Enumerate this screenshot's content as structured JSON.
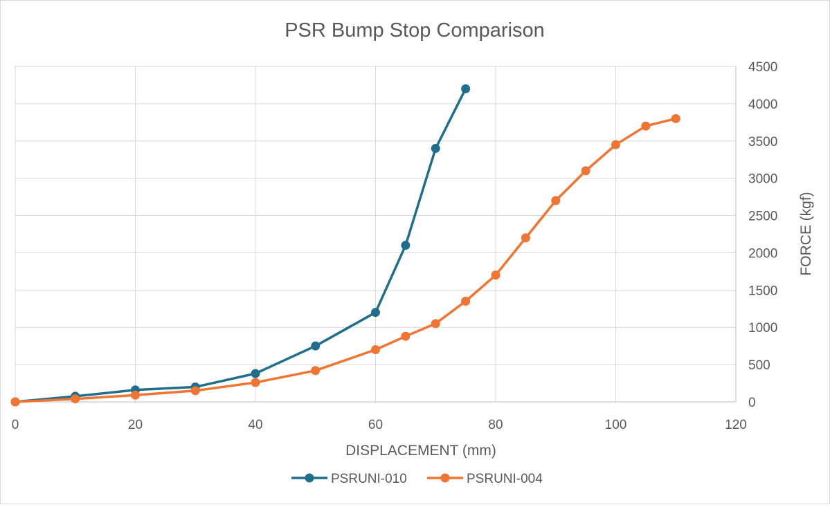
{
  "chart_data": {
    "type": "line",
    "title": "PSR Bump Stop Comparison",
    "xlabel": "DISPLACEMENT (mm)",
    "ylabel": "FORCE (kgf)",
    "xlim": [
      0,
      120
    ],
    "ylim": [
      0,
      4500
    ],
    "xticks": [
      0,
      20,
      40,
      60,
      80,
      100,
      120
    ],
    "yticks": [
      0,
      500,
      1000,
      1500,
      2000,
      2500,
      3000,
      3500,
      4000,
      4500
    ],
    "y_axis_side": "right",
    "grid": true,
    "legend_position": "bottom",
    "series": [
      {
        "name": "PSRUNI-010",
        "color": "#1f6e8c",
        "x": [
          0,
          10,
          20,
          30,
          40,
          50,
          60,
          65,
          70,
          75
        ],
        "y": [
          0,
          75,
          160,
          200,
          380,
          750,
          1200,
          2100,
          3400,
          4200
        ]
      },
      {
        "name": "PSRUNI-004",
        "color": "#f07432",
        "x": [
          0,
          10,
          20,
          30,
          40,
          50,
          60,
          65,
          70,
          75,
          80,
          85,
          90,
          95,
          100,
          105,
          110
        ],
        "y": [
          0,
          40,
          90,
          150,
          260,
          420,
          700,
          880,
          1050,
          1350,
          1700,
          2200,
          2700,
          3100,
          3450,
          3700,
          3800
        ]
      }
    ]
  }
}
